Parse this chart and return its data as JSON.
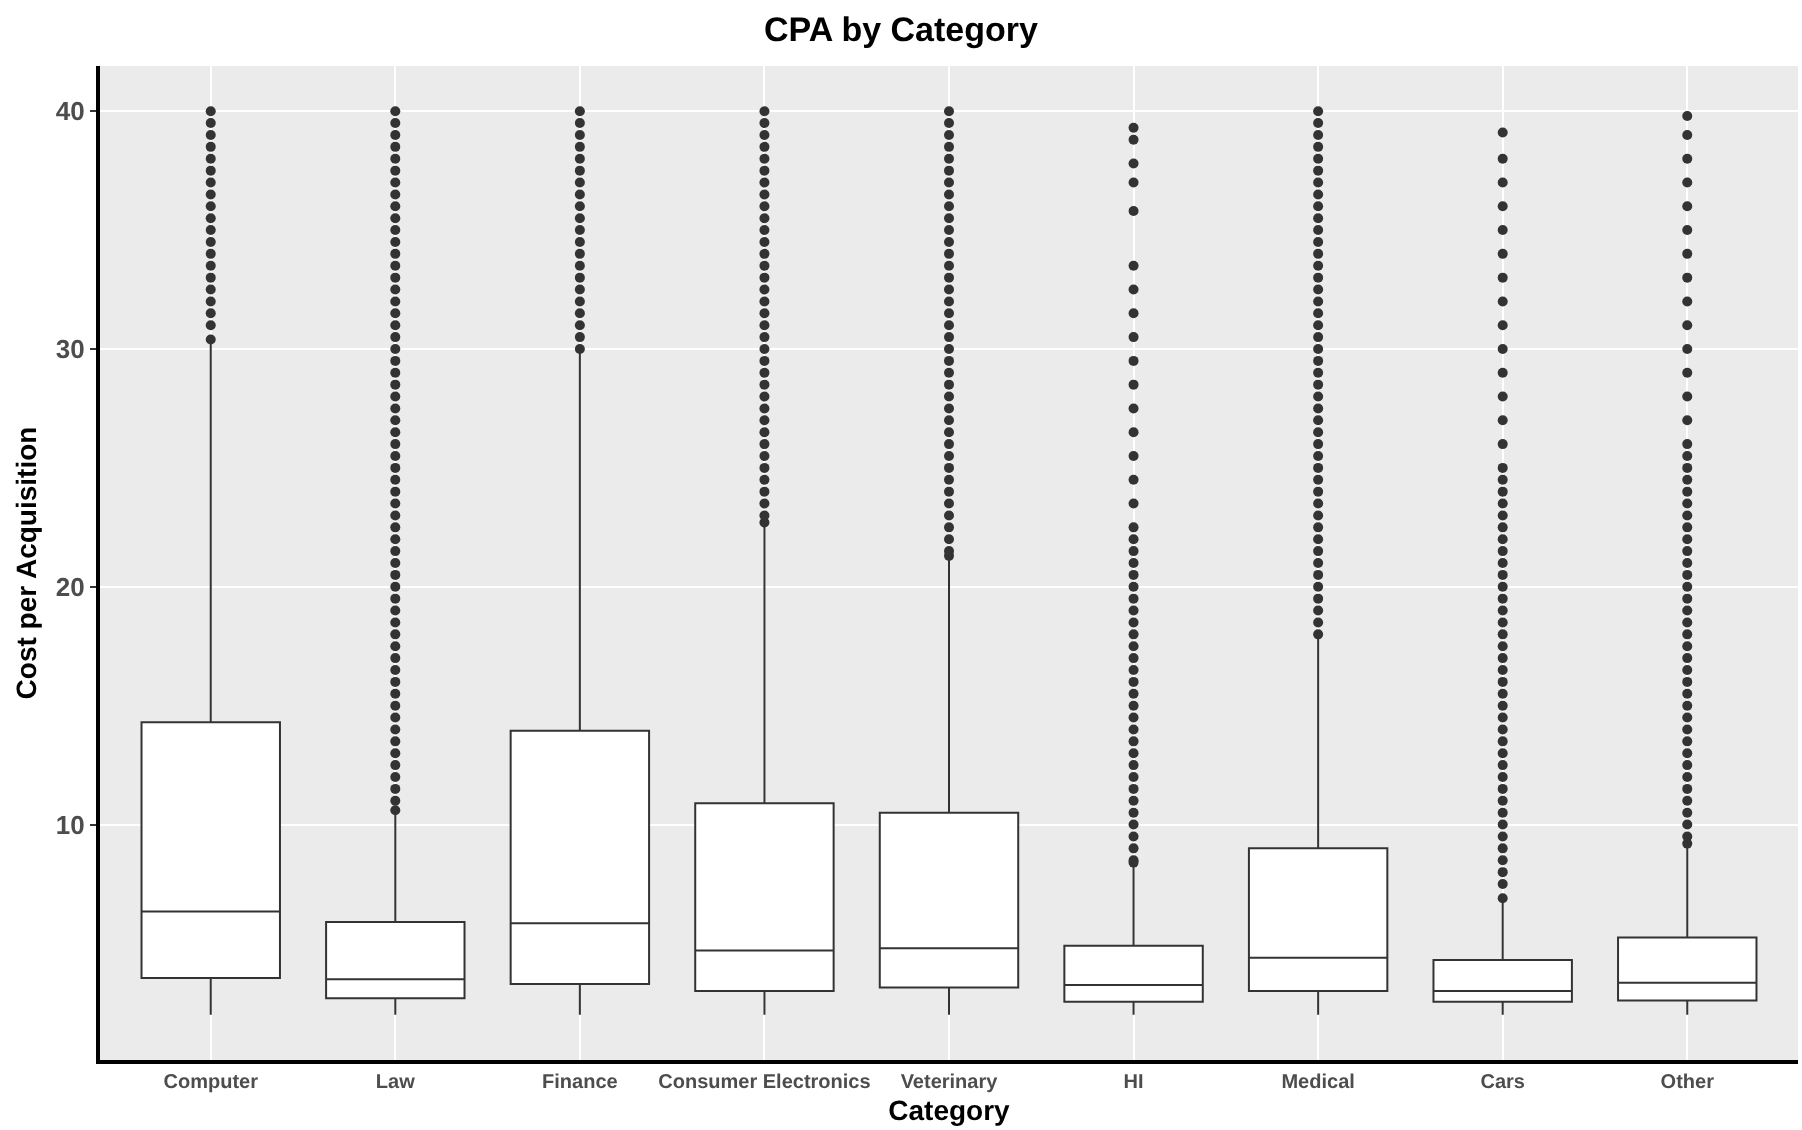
{
  "chart_data": {
    "type": "box",
    "title": "CPA by Category",
    "xlabel": "Category",
    "ylabel": "Cost per Acquisition",
    "categories": [
      "Computer",
      "Law",
      "Finance",
      "Consumer Electronics",
      "Veterinary",
      "HI",
      "Medical",
      "Cars",
      "Other"
    ],
    "color": "#333333",
    "ylim": [
      0.1,
      41.9
    ],
    "yticks": [
      10,
      20,
      30,
      40
    ],
    "grid": true,
    "boxes": [
      {
        "low": 2.0,
        "q1": 3.55,
        "median": 6.35,
        "q3": 14.3,
        "high": 30.4,
        "outliers": [
          30.4,
          31,
          31.5,
          32,
          32.5,
          33,
          33.5,
          34,
          34.5,
          35,
          35.5,
          36,
          36.5,
          37,
          37.5,
          38,
          38.5,
          39,
          39.5,
          40
        ]
      },
      {
        "low": 2.0,
        "q1": 2.7,
        "median": 3.5,
        "q3": 5.9,
        "high": 10.6,
        "outliers": [
          10.6,
          11,
          11.5,
          12,
          12.5,
          13,
          13.5,
          14,
          14.5,
          15,
          15.5,
          16,
          16.5,
          17,
          17.5,
          18,
          18.5,
          19,
          19.5,
          20,
          20.5,
          21,
          21.5,
          22,
          22.5,
          23,
          23.5,
          24,
          24.5,
          25,
          25.5,
          26,
          26.5,
          27,
          27.5,
          28,
          28.5,
          29,
          29.5,
          30,
          30.5,
          31,
          31.5,
          32,
          32.5,
          33,
          33.5,
          34,
          34.5,
          35,
          35.5,
          36,
          36.5,
          37,
          37.5,
          38,
          38.5,
          39,
          39.5,
          40
        ]
      },
      {
        "low": 2.0,
        "q1": 3.3,
        "median": 5.85,
        "q3": 13.95,
        "high": 29.95,
        "outliers": [
          30,
          30.5,
          31,
          31.5,
          32,
          32.5,
          33,
          33.5,
          34,
          34.5,
          35,
          35.5,
          36,
          36.5,
          37,
          37.5,
          38,
          38.5,
          39,
          39.5,
          40
        ]
      },
      {
        "low": 2.0,
        "q1": 3.0,
        "median": 4.7,
        "q3": 10.9,
        "high": 22.7,
        "outliers": [
          22.7,
          23,
          23.5,
          24,
          24.5,
          25,
          25.5,
          26,
          26.5,
          27,
          27.5,
          28,
          28.5,
          29,
          29.5,
          30,
          30.5,
          31,
          31.5,
          32,
          32.5,
          33,
          33.5,
          34,
          34.5,
          35,
          35.5,
          36,
          36.5,
          37,
          37.5,
          38,
          38.5,
          39,
          39.5,
          40
        ]
      },
      {
        "low": 2.0,
        "q1": 3.15,
        "median": 4.8,
        "q3": 10.5,
        "high": 21.3,
        "outliers": [
          21.3,
          21.5,
          22,
          22.5,
          23,
          23.5,
          24,
          24.5,
          25,
          25.5,
          26,
          26.5,
          27,
          27.5,
          28,
          28.5,
          29,
          29.5,
          30,
          30.5,
          31,
          31.5,
          32,
          32.5,
          33,
          33.5,
          34,
          34.5,
          35,
          35.5,
          36,
          36.5,
          37,
          37.5,
          38,
          38.5,
          39,
          39.5,
          40
        ]
      },
      {
        "low": 2.0,
        "q1": 2.55,
        "median": 3.25,
        "q3": 4.9,
        "high": 8.35,
        "outliers": [
          8.4,
          8.5,
          9,
          9.5,
          10,
          10.5,
          11,
          11.5,
          12,
          12.5,
          13,
          13.5,
          14,
          14.5,
          15,
          15.5,
          16,
          16.5,
          17,
          17.5,
          18,
          18.5,
          19,
          19.5,
          20,
          20.5,
          21,
          21.5,
          22,
          22.5,
          23.5,
          24.5,
          25.5,
          26.5,
          27.5,
          28.5,
          29.5,
          30.5,
          31.5,
          32.5,
          33.5,
          35.8,
          37,
          37.8,
          38.8,
          39.3
        ]
      },
      {
        "low": 2.0,
        "q1": 3.0,
        "median": 4.4,
        "q3": 9.0,
        "high": 18.0,
        "outliers": [
          18,
          18.5,
          19,
          19.5,
          20,
          20.5,
          21,
          21.5,
          22,
          22.5,
          23,
          23.5,
          24,
          24.5,
          25,
          25.5,
          26,
          26.5,
          27,
          27.5,
          28,
          28.5,
          29,
          29.5,
          30,
          30.5,
          31,
          31.5,
          32,
          32.5,
          33,
          33.5,
          34,
          34.5,
          35,
          35.5,
          36,
          36.5,
          37,
          37.5,
          38,
          38.5,
          39,
          39.5,
          40
        ]
      },
      {
        "low": 2.0,
        "q1": 2.55,
        "median": 3.0,
        "q3": 4.3,
        "high": 6.85,
        "outliers": [
          6.9,
          7.5,
          8,
          8.5,
          9,
          9.5,
          10,
          10.5,
          11,
          11.5,
          12,
          12.5,
          13,
          13.5,
          14,
          14.5,
          15,
          15.5,
          16,
          16.5,
          17,
          17.5,
          18,
          18.5,
          19,
          19.5,
          20,
          20.5,
          21,
          21.5,
          22,
          22.5,
          23,
          23.5,
          24,
          24.5,
          25,
          26,
          27,
          28,
          29,
          30,
          31,
          32,
          33,
          34,
          35,
          36,
          37,
          38,
          39.1
        ]
      },
      {
        "low": 2.0,
        "q1": 2.6,
        "median": 3.35,
        "q3": 5.25,
        "high": 9.2,
        "outliers": [
          9.2,
          9.5,
          10,
          10.5,
          11,
          11.5,
          12,
          12.5,
          13,
          13.5,
          14,
          14.5,
          15,
          15.5,
          16,
          16.5,
          17,
          17.5,
          18,
          18.5,
          19,
          19.5,
          20,
          20.5,
          21,
          21.5,
          22,
          22.5,
          23,
          23.5,
          24,
          24.5,
          25,
          25.5,
          26,
          27,
          28,
          29,
          30,
          31,
          32,
          33,
          34,
          35,
          36,
          37,
          38,
          39,
          39.8
        ]
      }
    ]
  }
}
